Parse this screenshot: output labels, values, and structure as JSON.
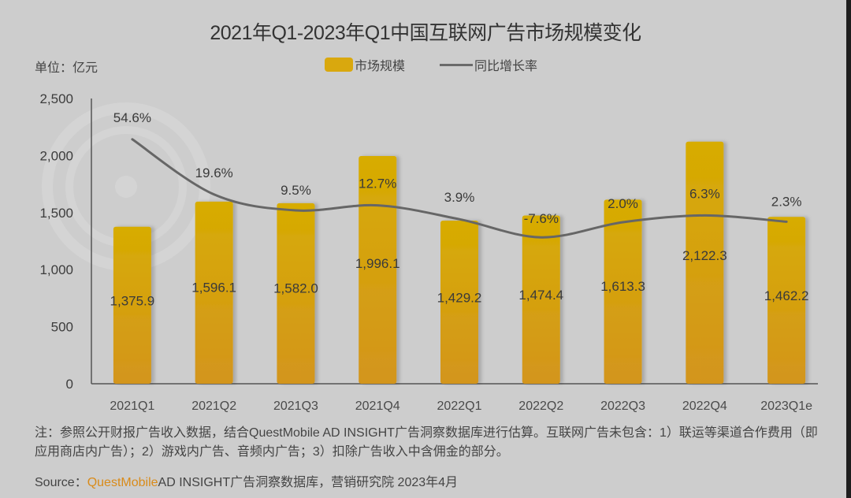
{
  "chart_data": {
    "type": "bar",
    "title": "2021年Q1-2023年Q1中国互联网广告市场规模变化",
    "unit_label": "单位：亿元",
    "categories": [
      "2021Q1",
      "2021Q2",
      "2021Q3",
      "2021Q4",
      "2022Q1",
      "2022Q2",
      "2022Q3",
      "2022Q4",
      "2023Q1e"
    ],
    "series": [
      {
        "name": "市场规模",
        "kind": "bar",
        "values": [
          1375.9,
          1596.1,
          1582.0,
          1996.1,
          1429.2,
          1474.4,
          1613.3,
          2122.3,
          1462.2
        ],
        "labels": [
          "1,375.9",
          "1,596.1",
          "1,582.0",
          "1,996.1",
          "1,429.2",
          "1,474.4",
          "1,613.3",
          "2,122.3",
          "1,462.2"
        ],
        "color": "#d9a80e"
      },
      {
        "name": "同比增长率",
        "kind": "line",
        "values": [
          54.6,
          19.6,
          9.5,
          12.7,
          3.9,
          -7.6,
          2.0,
          6.3,
          2.3
        ],
        "labels": [
          "54.6%",
          "19.6%",
          "9.5%",
          "12.7%",
          "3.9%",
          "-7.6%",
          "2.0%",
          "6.3%",
          "2.3%"
        ],
        "color": "#666666"
      }
    ],
    "ylim": [
      0,
      2500
    ],
    "yticks": [
      0,
      500,
      1000,
      1500,
      2000,
      2500
    ],
    "ytick_labels": [
      "0",
      "500",
      "1,000",
      "1,500",
      "2,000",
      "2,500"
    ],
    "xlabel": "",
    "ylabel": "",
    "legend": "top-center",
    "grid": false
  },
  "footer": {
    "note": "注：参照公开财报广告收入数据，结合QuestMobile AD INSIGHT广告洞察数据库进行估算。互联网广告未包含：1）联运等渠道合作费用（即应用商店内广告）；2）游戏内广告、音频内广告；3）扣除广告收入中含佣金的部分。",
    "source_prefix": "Source：",
    "source_brand": "QuestMobile",
    "source_rest": "AD INSIGHT广告洞察数据库，营销研究院 2023年4月"
  }
}
